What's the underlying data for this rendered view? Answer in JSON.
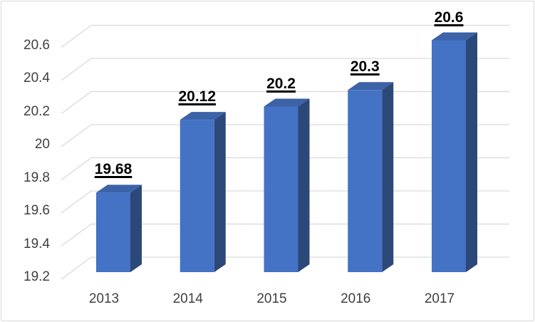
{
  "chart_data": {
    "type": "bar",
    "style": "3d-column",
    "title": "",
    "xlabel": "",
    "ylabel": "",
    "legend": "none",
    "grid": true,
    "categories": [
      "2013",
      "2014",
      "2015",
      "2016",
      "2017"
    ],
    "values": [
      19.68,
      20.12,
      20.2,
      20.3,
      20.6
    ],
    "data_labels": [
      "19.68",
      "20.12",
      "20.2",
      "20.3",
      "20.6"
    ],
    "y_tick_labels": [
      "19.2",
      "19.4",
      "19.6",
      "19.8",
      "20",
      "20.2",
      "20.4",
      "20.6"
    ],
    "y_tick_values": [
      19.2,
      19.4,
      19.6,
      19.8,
      20.0,
      20.2,
      20.4,
      20.6
    ],
    "ylim": [
      19.2,
      20.6
    ],
    "colors": {
      "bar_front": "#4472C4",
      "bar_top": "#3C62A7",
      "bar_side": "#2C4879",
      "gridline": "#D9D9D9",
      "axis_label": "#3F3F3F",
      "data_label": "#000000",
      "chart_border": "#D9D9D9",
      "background": "#FFFFFF"
    }
  }
}
